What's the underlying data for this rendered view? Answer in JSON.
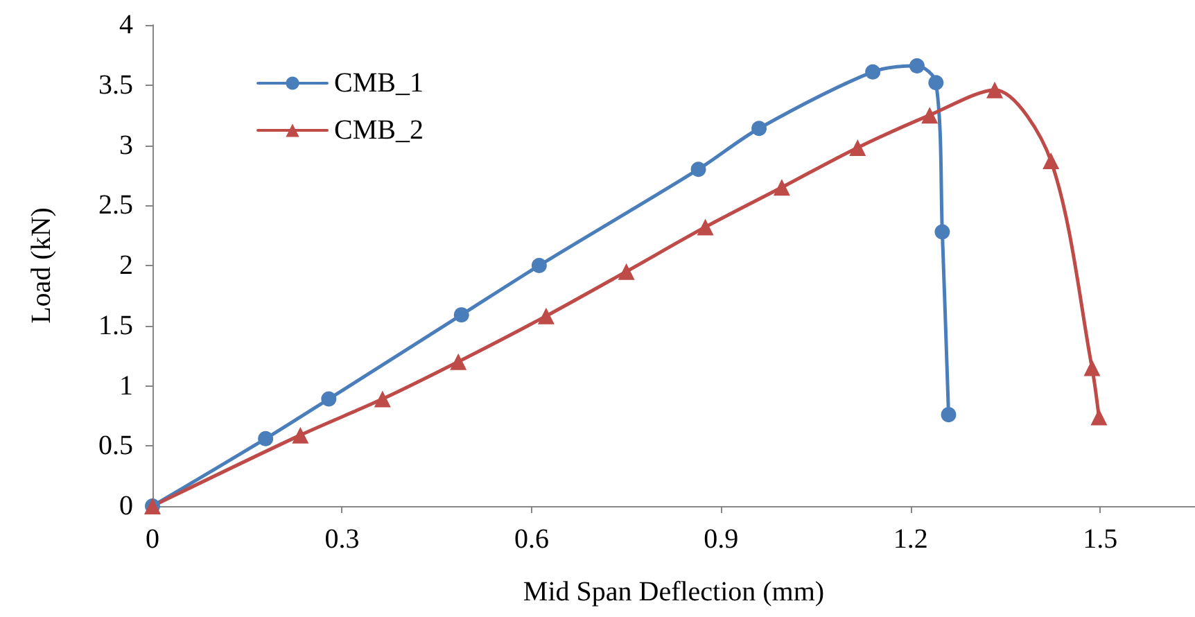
{
  "chart_data": {
    "type": "line",
    "xlabel": "Mid Span Deflection (mm)",
    "ylabel": "Load (kN)",
    "xlim": [
      0,
      1.65
    ],
    "xticks": [
      0,
      0.3,
      0.6,
      0.9,
      1.2,
      1.5
    ],
    "ylim": [
      0,
      4
    ],
    "yticks": [
      0,
      0.5,
      1,
      1.5,
      2,
      2.5,
      3,
      3.5,
      4
    ],
    "grid": false,
    "legend": "top left",
    "series": [
      {
        "name": "CMB_1",
        "color": "#4a7ebb",
        "marker": "circle",
        "x": [
          0,
          0.179,
          0.279,
          0.489,
          0.612,
          0.864,
          0.96,
          1.14,
          1.21,
          1.24,
          1.25,
          1.26
        ],
        "values": [
          0,
          0.56,
          0.89,
          1.59,
          2.0,
          2.8,
          3.14,
          3.61,
          3.66,
          3.52,
          2.28,
          0.76
        ]
      },
      {
        "name": "CMB_2",
        "color": "#be4b48",
        "marker": "triangle",
        "x": [
          0,
          0.234,
          0.364,
          0.484,
          0.623,
          0.75,
          0.875,
          0.996,
          1.116,
          1.23,
          1.333,
          1.422,
          1.487,
          1.498
        ],
        "values": [
          0,
          0.59,
          0.89,
          1.2,
          1.58,
          1.95,
          2.32,
          2.65,
          2.98,
          3.25,
          3.46,
          2.87,
          1.15,
          0.74
        ]
      }
    ]
  }
}
